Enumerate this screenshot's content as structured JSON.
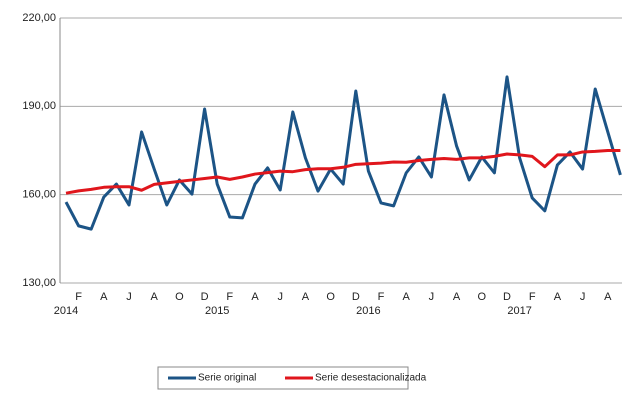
{
  "chart_data": {
    "type": "line",
    "categories": [
      null,
      "F",
      null,
      "A",
      null,
      "J",
      null,
      "A",
      null,
      "O",
      null,
      "D",
      null,
      "F",
      null,
      "A",
      null,
      "J",
      null,
      "A",
      null,
      "O",
      null,
      "D",
      null,
      "F",
      null,
      "A",
      null,
      "J",
      null,
      "A",
      null,
      "O",
      null,
      "D",
      null,
      "F",
      null,
      "A",
      null,
      "J",
      null,
      "A",
      null
    ],
    "year_labels": [
      "2014",
      null,
      null,
      null,
      null,
      null,
      null,
      null,
      null,
      null,
      null,
      null,
      "2015",
      null,
      null,
      null,
      null,
      null,
      null,
      null,
      null,
      null,
      null,
      null,
      "2016",
      null,
      null,
      null,
      null,
      null,
      null,
      null,
      null,
      null,
      null,
      null,
      "2017",
      null,
      null,
      null,
      null,
      null,
      null,
      null,
      null
    ],
    "series": [
      {
        "name": "Serie original",
        "color": "#1c5486",
        "values": [
          157.5,
          149.4,
          148.3,
          159.2,
          163.6,
          156.5,
          181.3,
          168.7,
          156.5,
          165,
          160.2,
          189.1,
          163.6,
          152.4,
          152.1,
          163.6,
          169.1,
          161.6,
          188.1,
          172.5,
          161.2,
          168.7,
          163.6,
          195.2,
          168,
          157.2,
          156.2,
          167.4,
          172.8,
          166,
          193.9,
          176.5,
          165,
          172.8,
          167.4,
          200,
          172.5,
          158.9,
          154.5,
          170.1,
          174.5,
          168.7,
          195.9,
          181.3,
          166.7
        ]
      },
      {
        "name": "Serie desestacionalizada",
        "color": "#e0161c",
        "values": [
          160.5,
          161.3,
          161.8,
          162.5,
          162.7,
          162.7,
          161.5,
          163.5,
          164,
          164.5,
          165,
          165.5,
          166,
          165.2,
          166,
          167,
          167.5,
          168,
          167.8,
          168.5,
          168.8,
          168.8,
          169.3,
          170.3,
          170.5,
          170.7,
          171.1,
          171,
          171.6,
          172,
          172.3,
          172,
          172.5,
          172.5,
          173,
          173.8,
          173.5,
          173,
          169.5,
          173.5,
          173.5,
          174.5,
          174.7,
          175,
          175
        ]
      }
    ],
    "ylim": [
      130,
      220
    ],
    "yticks": [
      {
        "value": 130,
        "label": "130,00"
      },
      {
        "value": 160,
        "label": "160,00"
      },
      {
        "value": 190,
        "label": "190,00"
      },
      {
        "value": 220,
        "label": "220,00"
      }
    ],
    "grid": true,
    "legend": "bottom"
  }
}
